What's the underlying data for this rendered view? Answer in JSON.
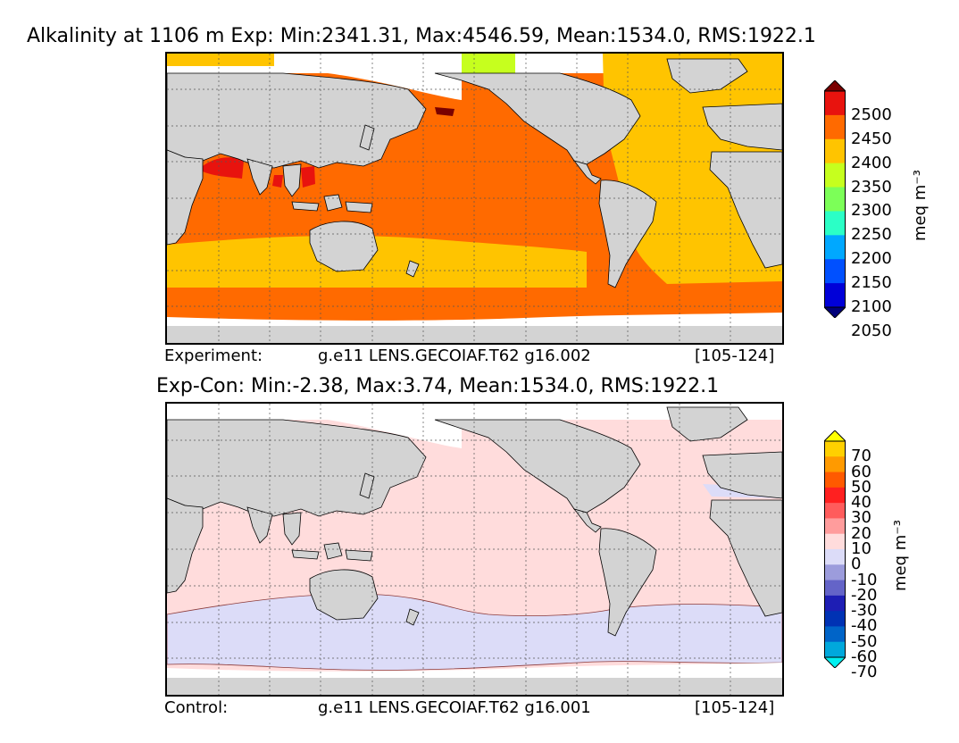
{
  "top": {
    "title": "Alkalinity at 1106 m Exp: Min:2341.31, Max:4546.59, Mean:1534.0, RMS:1922.1",
    "footer_label": "Experiment:",
    "footer_case": "g.e11 LENS.GECOIAF.T62 g16.002",
    "footer_years": "[105-124]",
    "colorbar": {
      "unit": "meq m⁻³",
      "ticks": [
        "2500",
        "2450",
        "2400",
        "2350",
        "2300",
        "2250",
        "2200",
        "2150",
        "2100",
        "2050"
      ],
      "colors": [
        "#7a0000",
        "#e8130e",
        "#ff6a00",
        "#ffc400",
        "#c6ff1e",
        "#7cff58",
        "#2bffc6",
        "#00a8ff",
        "#0050ff",
        "#0000d8",
        "#00007a"
      ]
    },
    "fill_colors": {
      "land": "#d3d3d3",
      "ice": "#ffffff",
      "c2400": "#ff6a00",
      "c2350": "#ffc400",
      "c2450": "#e8130e",
      "c2300": "#c6ff1e",
      "c2500": "#7a0000"
    }
  },
  "bottom": {
    "title": "Exp-Con: Min:-2.38, Max:3.74, Mean:1534.0, RMS:1922.1",
    "footer_label": "Control:",
    "footer_case": "g.e11 LENS.GECOIAF.T62 g16.001",
    "footer_years": "[105-124]",
    "colorbar": {
      "unit": "meq m⁻³",
      "ticks": [
        "70",
        "60",
        "50",
        "40",
        "30",
        "20",
        "10",
        "0",
        "-10",
        "-20",
        "-30",
        "-40",
        "-50",
        "-60",
        "-70"
      ],
      "colors": [
        "#ffff00",
        "#ffd000",
        "#ff9a00",
        "#ff5a00",
        "#ff2020",
        "#ff5c5c",
        "#ff9c9c",
        "#ffdcdc",
        "#dcdcf8",
        "#9c9cdc",
        "#6464c8",
        "#1e1eb4",
        "#0032b4",
        "#0064c8",
        "#00a8dc",
        "#00f0f0"
      ]
    },
    "fill_colors": {
      "land": "#d3d3d3",
      "ice": "#ffffff",
      "pos": "#ffdcdc",
      "neg": "#dcdcf8"
    }
  }
}
